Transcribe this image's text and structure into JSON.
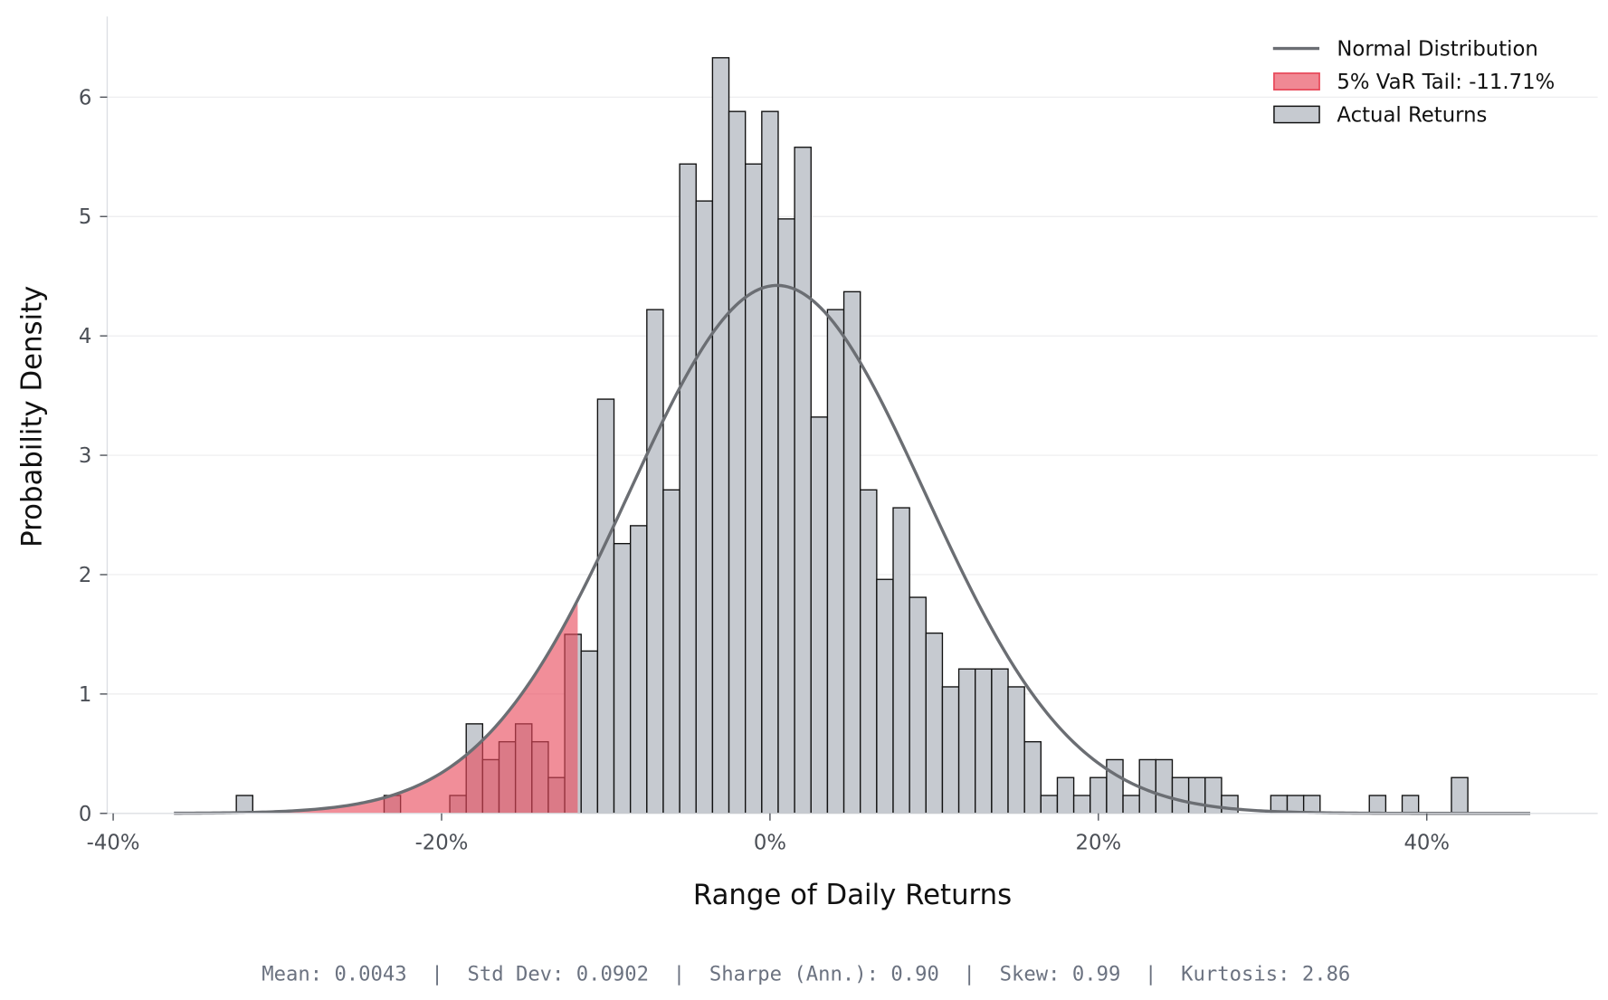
{
  "chart_data": {
    "type": "bar",
    "title": "",
    "xlabel": "Range of Daily Returns",
    "ylabel": "Probability Density",
    "xlim": [
      -40,
      50
    ],
    "ylim": [
      0,
      6.6
    ],
    "x_unit": "percent",
    "grid": "horizontal",
    "legend_position": "top-right",
    "x_ticks": [
      {
        "value": -40,
        "label": "-40%"
      },
      {
        "value": -20,
        "label": "-20%"
      },
      {
        "value": 0,
        "label": "0%"
      },
      {
        "value": 20,
        "label": "20%"
      },
      {
        "value": 40,
        "label": "40%"
      }
    ],
    "y_ticks": [
      {
        "value": 0,
        "label": "0"
      },
      {
        "value": 1,
        "label": "1"
      },
      {
        "value": 2,
        "label": "2"
      },
      {
        "value": 3,
        "label": "3"
      },
      {
        "value": 4,
        "label": "4"
      },
      {
        "value": 5,
        "label": "5"
      },
      {
        "value": 6,
        "label": "6"
      }
    ],
    "bin_width": 1,
    "histogram": {
      "name": "Actual Returns",
      "bin_centers": [
        -32,
        -23,
        -19,
        -18,
        -17,
        -16,
        -15,
        -14,
        -13,
        -12,
        -11,
        -10,
        -9,
        -8,
        -7,
        -6,
        -5,
        -4,
        -3,
        -2,
        -1,
        0,
        1,
        2,
        3,
        4,
        5,
        6,
        7,
        8,
        9,
        10,
        11,
        12,
        13,
        14,
        15,
        16,
        17,
        18,
        19,
        20,
        21,
        22,
        23,
        24,
        25,
        26,
        27,
        28,
        31,
        32,
        33,
        37,
        39,
        42
      ],
      "densities": [
        0.15,
        0.15,
        0.15,
        0.75,
        0.45,
        0.6,
        0.75,
        0.6,
        0.3,
        1.5,
        1.36,
        3.47,
        2.26,
        2.41,
        4.22,
        2.71,
        5.44,
        5.13,
        6.33,
        5.88,
        5.44,
        5.88,
        4.98,
        5.58,
        3.32,
        4.22,
        4.37,
        2.71,
        1.96,
        2.56,
        1.81,
        1.51,
        1.06,
        1.21,
        1.21,
        1.21,
        1.06,
        0.6,
        0.15,
        0.3,
        0.15,
        0.3,
        0.45,
        0.15,
        0.45,
        0.45,
        0.3,
        0.3,
        0.3,
        0.15,
        0.15,
        0.15,
        0.15,
        0.15,
        0.15,
        0.3
      ],
      "color": "#c6cad0",
      "edge_color": "#111111"
    },
    "normal_curve": {
      "name": "Normal Distribution",
      "mean_pct": 0.43,
      "std_pct": 9.02,
      "x_range": [
        -36.3,
        46.4
      ],
      "color": "#6b6e73"
    },
    "var_tail": {
      "name": "5% VaR Tail: -11.71%",
      "threshold_pct": -11.71,
      "color": "#e8495a"
    },
    "legend": [
      {
        "label": "Normal Distribution",
        "kind": "line"
      },
      {
        "label": "5% VaR Tail: -11.71%",
        "kind": "fill"
      },
      {
        "label": "Actual Returns",
        "kind": "bar"
      }
    ]
  },
  "stats_line": "Mean: 0.0043  |  Std Dev: 0.0902  |  Sharpe (Ann.): 0.90  |  Skew: 0.99  |  Kurtosis: 2.86"
}
